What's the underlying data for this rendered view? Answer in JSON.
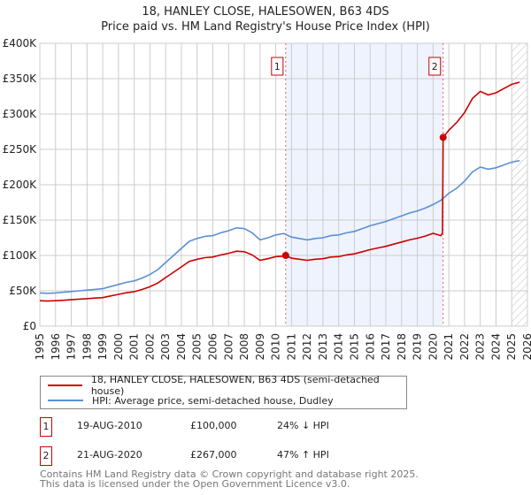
{
  "title": "18, HANLEY CLOSE, HALESOWEN, B63 4DS",
  "subtitle": "Price paid vs. HM Land Registry's House Price Index (HPI)",
  "chart_data": {
    "type": "line",
    "xlim": [
      1995,
      2026
    ],
    "ylim": [
      0,
      400000
    ],
    "x_ticks": [
      "1995",
      "1996",
      "1997",
      "1998",
      "1999",
      "2000",
      "2001",
      "2002",
      "2003",
      "2004",
      "2005",
      "2006",
      "2007",
      "2008",
      "2009",
      "2010",
      "2011",
      "2012",
      "2013",
      "2014",
      "2015",
      "2016",
      "2017",
      "2018",
      "2019",
      "2020",
      "2021",
      "2022",
      "2023",
      "2024",
      "2025",
      "2026"
    ],
    "y_ticks": [
      {
        "value": 0,
        "label": "£0"
      },
      {
        "value": 50000,
        "label": "£50K"
      },
      {
        "value": 100000,
        "label": "£100K"
      },
      {
        "value": 150000,
        "label": "£150K"
      },
      {
        "value": 200000,
        "label": "£200K"
      },
      {
        "value": 250000,
        "label": "£250K"
      },
      {
        "value": 300000,
        "label": "£300K"
      },
      {
        "value": 350000,
        "label": "£350K"
      },
      {
        "value": 400000,
        "label": "£400K"
      }
    ],
    "grid": true,
    "forecast_start": 2025.0,
    "shaded_between_sales": [
      2010.63,
      2020.64
    ],
    "series": [
      {
        "name": "18, HANLEY CLOSE, HALESOWEN, B63 4DS (semi-detached house)",
        "color": "#cc0000",
        "x": [
          1995,
          1995.5,
          1996,
          1996.5,
          1997,
          1997.5,
          1998,
          1998.5,
          1999,
          1999.5,
          2000,
          2000.5,
          2001,
          2001.5,
          2002,
          2002.5,
          2003,
          2003.5,
          2004,
          2004.5,
          2005,
          2005.5,
          2006,
          2006.5,
          2007,
          2007.5,
          2008,
          2008.5,
          2009,
          2009.5,
          2010,
          2010.5,
          2010.63,
          2011,
          2011.5,
          2012,
          2012.5,
          2013,
          2013.5,
          2014,
          2014.5,
          2015,
          2015.5,
          2016,
          2016.5,
          2017,
          2017.5,
          2018,
          2018.5,
          2019,
          2019.5,
          2020,
          2020.5,
          2020.6,
          2020.64,
          2021,
          2021.5,
          2022,
          2022.5,
          2023,
          2023.5,
          2024,
          2024.5,
          2025,
          2025.5
        ],
        "y": [
          36000,
          35500,
          36000,
          36600,
          37400,
          38200,
          38900,
          39700,
          40400,
          42700,
          45000,
          47300,
          48800,
          51900,
          55700,
          61000,
          68700,
          76300,
          83900,
          91600,
          94600,
          96900,
          97700,
          100700,
          103000,
          106000,
          105300,
          100700,
          93100,
          95400,
          98400,
          99000,
          100000,
          96100,
          94600,
          93100,
          94600,
          95400,
          97700,
          98400,
          100700,
          102200,
          105300,
          108300,
          110600,
          112900,
          116000,
          119000,
          122000,
          124400,
          127400,
          131200,
          128000,
          132000,
          267000,
          277000,
          288000,
          302000,
          322000,
          332000,
          327000,
          330000,
          336000,
          342000,
          345000
        ]
      },
      {
        "name": "HPI: Average price, semi-detached house, Dudley",
        "color": "#5b8fd6",
        "x": [
          1995,
          1995.5,
          1996,
          1996.5,
          1997,
          1997.5,
          1998,
          1998.5,
          1999,
          1999.5,
          2000,
          2000.5,
          2001,
          2001.5,
          2002,
          2002.5,
          2003,
          2003.5,
          2004,
          2004.5,
          2005,
          2005.5,
          2006,
          2006.5,
          2007,
          2007.5,
          2008,
          2008.5,
          2009,
          2009.5,
          2010,
          2010.5,
          2011,
          2011.5,
          2012,
          2012.5,
          2013,
          2013.5,
          2014,
          2014.5,
          2015,
          2015.5,
          2016,
          2016.5,
          2017,
          2017.5,
          2018,
          2018.5,
          2019,
          2019.5,
          2020,
          2020.5,
          2021,
          2021.5,
          2022,
          2022.5,
          2023,
          2023.5,
          2024,
          2024.5,
          2025,
          2025.5
        ],
        "y": [
          47000,
          46500,
          47000,
          48000,
          49000,
          50000,
          51000,
          52000,
          53000,
          56000,
          59000,
          62000,
          64000,
          68000,
          73000,
          80000,
          90000,
          100000,
          110000,
          120000,
          124000,
          127000,
          128000,
          132000,
          135000,
          139000,
          138000,
          132000,
          122000,
          125000,
          129000,
          131000,
          126000,
          124000,
          122000,
          124000,
          125000,
          128000,
          129000,
          132000,
          134000,
          138000,
          142000,
          145000,
          148000,
          152000,
          156000,
          160000,
          163000,
          167000,
          172000,
          178000,
          188000,
          195000,
          205000,
          218000,
          225000,
          222000,
          224000,
          228000,
          232000,
          234000
        ]
      }
    ],
    "sales": [
      {
        "label": "1",
        "x": 2010.63,
        "y": 100000,
        "date": "19-AUG-2010",
        "price": "£100,000",
        "hpi": "24% ↓ HPI"
      },
      {
        "label": "2",
        "x": 2020.64,
        "y": 267000,
        "date": "21-AUG-2020",
        "price": "£267,000",
        "hpi": "47% ↑ HPI"
      }
    ]
  },
  "legend": {
    "red": "18, HANLEY CLOSE, HALESOWEN, B63 4DS (semi-detached house)",
    "blue": "HPI: Average price, semi-detached house, Dudley"
  },
  "footer": {
    "line1": "Contains HM Land Registry data © Crown copyright and database right 2025.",
    "line2": "This data is licensed under the Open Government Licence v3.0."
  }
}
